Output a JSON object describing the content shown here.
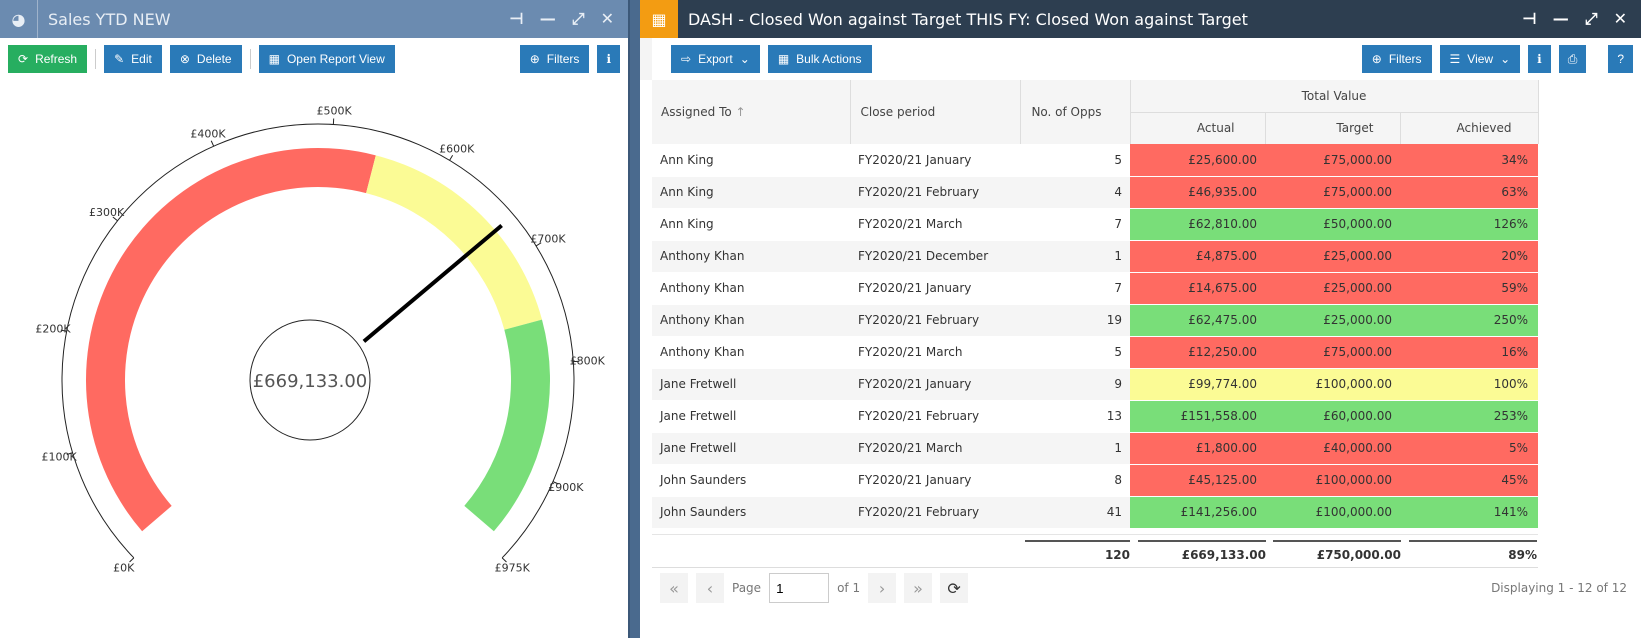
{
  "left": {
    "title": "Sales YTD NEW",
    "buttons": {
      "refresh": "Refresh",
      "edit": "Edit",
      "delete": "Delete",
      "report": "Open Report View",
      "filters": "Filters"
    }
  },
  "gauge": {
    "value": 669133,
    "value_label": "£669,133.00",
    "min": 0,
    "max": 975000,
    "ticks": [
      "£0K",
      "£100K",
      "£200K",
      "£300K",
      "£400K",
      "£500K",
      "£600K",
      "£700K",
      "£800K",
      "£900K",
      "£975K"
    ],
    "tick_values": [
      0,
      100000,
      200000,
      300000,
      400000,
      500000,
      600000,
      700000,
      800000,
      900000,
      975000
    ],
    "bands": [
      {
        "from": 0,
        "to": 540000,
        "color": "#ff6a61"
      },
      {
        "from": 540000,
        "to": 760000,
        "color": "#fbfb95"
      },
      {
        "from": 760000,
        "to": 975000,
        "color": "#79de79"
      }
    ]
  },
  "right": {
    "title": "DASH - Closed Won against Target THIS FY: Closed Won against Target",
    "buttons": {
      "export": "Export",
      "bulk": "Bulk Actions",
      "filters": "Filters",
      "view": "View"
    },
    "columns": {
      "assigned": "Assigned To",
      "close": "Close period",
      "opps": "No. of Opps",
      "group": "Total Value",
      "actual": "Actual",
      "target": "Target",
      "achieved": "Achieved"
    },
    "rows": [
      [
        "Ann King",
        "FY2020/21 January",
        "5",
        "£25,600.00",
        "£75,000.00",
        "34%",
        "red"
      ],
      [
        "Ann King",
        "FY2020/21 February",
        "4",
        "£46,935.00",
        "£75,000.00",
        "63%",
        "red"
      ],
      [
        "Ann King",
        "FY2020/21 March",
        "7",
        "£62,810.00",
        "£50,000.00",
        "126%",
        "green"
      ],
      [
        "Anthony Khan",
        "FY2020/21 December",
        "1",
        "£4,875.00",
        "£25,000.00",
        "20%",
        "red"
      ],
      [
        "Anthony Khan",
        "FY2020/21 January",
        "7",
        "£14,675.00",
        "£25,000.00",
        "59%",
        "red"
      ],
      [
        "Anthony Khan",
        "FY2020/21 February",
        "19",
        "£62,475.00",
        "£25,000.00",
        "250%",
        "green"
      ],
      [
        "Anthony Khan",
        "FY2020/21 March",
        "5",
        "£12,250.00",
        "£75,000.00",
        "16%",
        "red"
      ],
      [
        "Jane Fretwell",
        "FY2020/21 January",
        "9",
        "£99,774.00",
        "£100,000.00",
        "100%",
        "yellow"
      ],
      [
        "Jane Fretwell",
        "FY2020/21 February",
        "13",
        "£151,558.00",
        "£60,000.00",
        "253%",
        "green"
      ],
      [
        "Jane Fretwell",
        "FY2020/21 March",
        "1",
        "£1,800.00",
        "£40,000.00",
        "5%",
        "red"
      ],
      [
        "John Saunders",
        "FY2020/21 January",
        "8",
        "£45,125.00",
        "£100,000.00",
        "45%",
        "red"
      ],
      [
        "John Saunders",
        "FY2020/21 February",
        "41",
        "£141,256.00",
        "£100,000.00",
        "141%",
        "green"
      ]
    ],
    "totals": {
      "opps": "120",
      "actual": "£669,133.00",
      "target": "£750,000.00",
      "achieved": "89%"
    },
    "pager": {
      "page_label": "Page",
      "page": "1",
      "of": "of 1",
      "display": "Displaying 1 - 12 of 12"
    }
  }
}
